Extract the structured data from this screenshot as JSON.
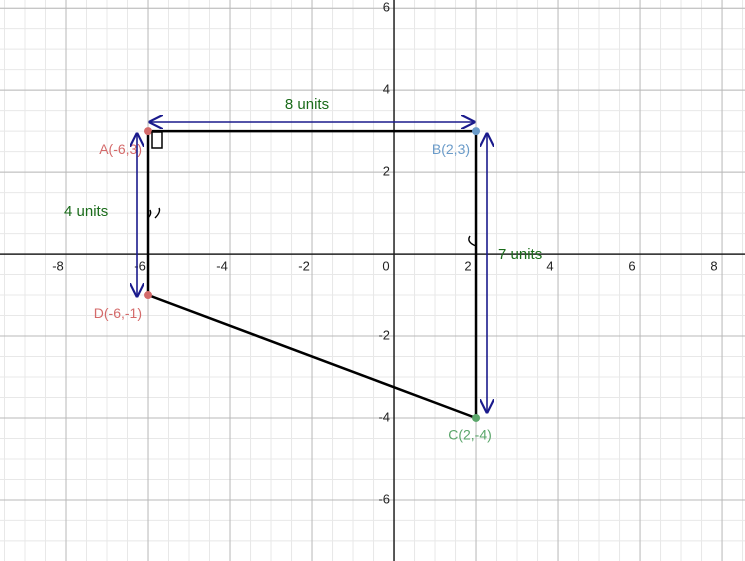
{
  "chart_data": {
    "type": "scatter",
    "xlim": [
      -9.61,
      8.56
    ],
    "ylim": [
      -7.49,
      6.2
    ],
    "xticks": [
      -8,
      -6,
      -4,
      -2,
      0,
      2,
      4,
      6,
      8
    ],
    "yticks": [
      -6,
      -4,
      -2,
      2,
      4,
      6
    ],
    "grid": true,
    "points": {
      "labels": [
        "A(-6,3)",
        "B(2,3)",
        "C(2,-4)",
        "D(-6,-1)"
      ],
      "x": [
        -6,
        2,
        2,
        -6
      ],
      "y": [
        3,
        3,
        -4,
        -1
      ],
      "colors": [
        "#d46a6a",
        "#6a9bc9",
        "#5aa66a",
        "#d46a6a"
      ]
    },
    "annotations": [
      "8 units",
      "4 units",
      "7 units"
    ]
  }
}
